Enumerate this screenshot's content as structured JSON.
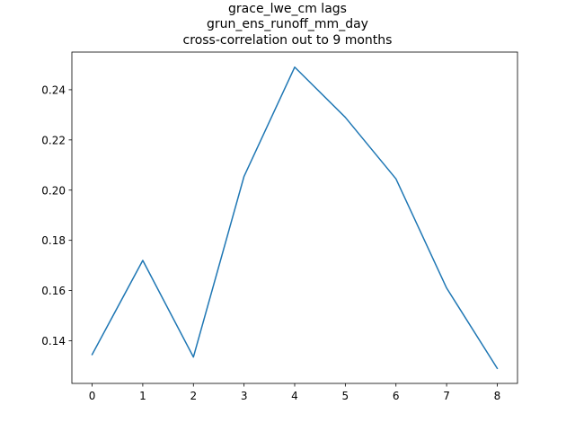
{
  "chart_data": {
    "type": "line",
    "title_lines": [
      "grace_lwe_cm lags",
      "grun_ens_runoff_mm_day",
      "cross-correlation out to 9 months"
    ],
    "xlabel": "",
    "ylabel": "",
    "x": [
      0,
      1,
      2,
      3,
      4,
      5,
      6,
      7,
      8
    ],
    "y": [
      0.1345,
      0.172,
      0.1335,
      0.2055,
      0.249,
      0.229,
      0.2045,
      0.161,
      0.129
    ],
    "xlim": [
      -0.4,
      8.4
    ],
    "ylim": [
      0.123,
      0.255
    ],
    "xticks": [
      0,
      1,
      2,
      3,
      4,
      5,
      6,
      7,
      8
    ],
    "yticks": [
      0.14,
      0.16,
      0.18,
      0.2,
      0.22,
      0.24
    ],
    "ytick_labels": [
      "0.14",
      "0.16",
      "0.18",
      "0.20",
      "0.22",
      "0.24"
    ],
    "grid": false,
    "line_color": "#1f77b4"
  }
}
